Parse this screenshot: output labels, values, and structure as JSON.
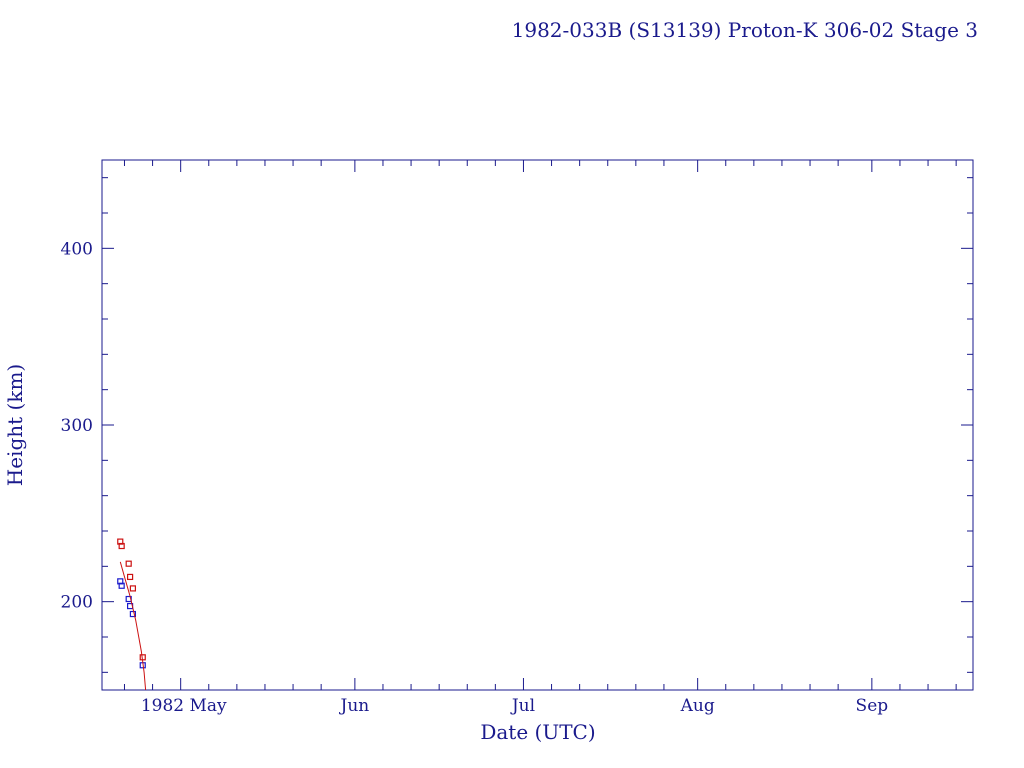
{
  "chart_data": {
    "type": "scatter",
    "title": "1982-033B (S13139) Proton-K 306-02 Stage 3",
    "xlabel": "Date (UTC)",
    "ylabel": "Height (km)",
    "x_unit": "date",
    "xlim": [
      "1982-04-17",
      "1982-09-19"
    ],
    "ylim": [
      150,
      450
    ],
    "x_tick_labels": [
      {
        "date": "1982-05-01",
        "label": "1982 May"
      },
      {
        "date": "1982-06-01",
        "label": "Jun"
      },
      {
        "date": "1982-07-01",
        "label": "Jul"
      },
      {
        "date": "1982-08-01",
        "label": "Aug"
      },
      {
        "date": "1982-09-01",
        "label": "Sep"
      }
    ],
    "y_ticks": [
      200,
      300,
      400
    ],
    "grid": false,
    "colors": {
      "axes": "#1a1a8c",
      "apogee": "#cc1111",
      "perigee": "#1a1acc",
      "fit": "#cc1111"
    },
    "series": [
      {
        "kind": "apogee",
        "color": "#cc1111",
        "points": [
          {
            "x": "1982-04-20 06:00",
            "y": 234
          },
          {
            "x": "1982-04-20 12:00",
            "y": 231.5
          },
          {
            "x": "1982-04-21 18:00",
            "y": 221.5
          },
          {
            "x": "1982-04-22 00:00",
            "y": 214
          },
          {
            "x": "1982-04-22 12:00",
            "y": 207.5
          },
          {
            "x": "1982-04-24 06:00",
            "y": 168.5
          }
        ]
      },
      {
        "kind": "perigee",
        "color": "#1a1acc",
        "points": [
          {
            "x": "1982-04-20 06:00",
            "y": 211.5
          },
          {
            "x": "1982-04-20 12:00",
            "y": 209
          },
          {
            "x": "1982-04-21 18:00",
            "y": 201.5
          },
          {
            "x": "1982-04-22 00:00",
            "y": 197.5
          },
          {
            "x": "1982-04-22 12:00",
            "y": 193
          },
          {
            "x": "1982-04-24 06:00",
            "y": 164
          }
        ]
      },
      {
        "kind": "fit",
        "type": "line",
        "color": "#cc1111",
        "points": [
          {
            "x": "1982-04-20 06:00",
            "y": 222.5
          },
          {
            "x": "1982-04-21 00:00",
            "y": 214
          },
          {
            "x": "1982-04-22 00:00",
            "y": 203
          },
          {
            "x": "1982-04-23 00:00",
            "y": 189.5
          },
          {
            "x": "1982-04-24 00:00",
            "y": 172
          },
          {
            "x": "1982-04-24 12:00",
            "y": 160
          },
          {
            "x": "1982-04-24 18:00",
            "y": 150
          }
        ]
      }
    ]
  }
}
